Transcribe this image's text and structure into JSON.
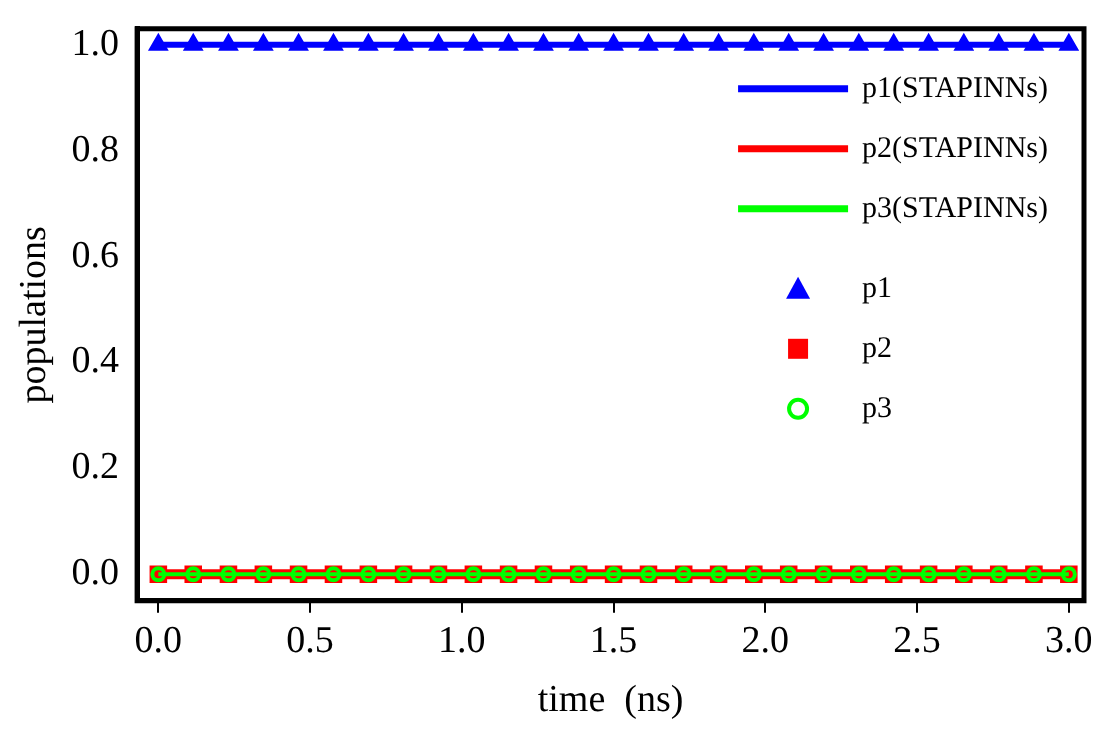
{
  "chart_data": {
    "type": "line",
    "xlabel": "time  (ns)",
    "ylabel": "populations",
    "xlim": [
      -0.07,
      3.05
    ],
    "ylim": [
      -0.05,
      1.03
    ],
    "xticks": [
      {
        "value": 0,
        "label": "0.0"
      },
      {
        "value": 0.5,
        "label": "0.5"
      },
      {
        "value": 1,
        "label": "1.0"
      },
      {
        "value": 1.5,
        "label": "1.5"
      },
      {
        "value": 2,
        "label": "2.0"
      },
      {
        "value": 2.5,
        "label": "2.5"
      },
      {
        "value": 3,
        "label": "3.0"
      }
    ],
    "yticks": [
      {
        "value": 0,
        "label": "0.0"
      },
      {
        "value": 0.2,
        "label": "0.2"
      },
      {
        "value": 0.4,
        "label": "0.4"
      },
      {
        "value": 0.6,
        "label": "0.6"
      },
      {
        "value": 0.8,
        "label": "0.8"
      },
      {
        "value": 1,
        "label": "1.0"
      }
    ],
    "grid": false,
    "legend": "top right",
    "series": [
      {
        "name": "p1(STAPINNs)",
        "type": "line",
        "color": "#0000ff",
        "marker": "none",
        "line_style": "solid",
        "x": [
          0,
          3
        ],
        "values": [
          1,
          1
        ]
      },
      {
        "name": "p2(STAPINNs)",
        "type": "line",
        "color": "#ff0000",
        "marker": "none",
        "line_style": "solid",
        "x": [
          0,
          3
        ],
        "values": [
          0,
          0
        ]
      },
      {
        "name": "p3(STAPINNs)",
        "type": "line",
        "color": "#00ff00",
        "marker": "none",
        "line_style": "solid",
        "x": [
          0,
          3
        ],
        "values": [
          0,
          0
        ]
      },
      {
        "name": "p1",
        "type": "scatter",
        "color": "#0000ff",
        "marker": "triangle",
        "x": [
          0,
          0.115,
          0.231,
          0.346,
          0.462,
          0.577,
          0.692,
          0.808,
          0.923,
          1.038,
          1.154,
          1.269,
          1.385,
          1.5,
          1.615,
          1.731,
          1.846,
          1.962,
          2.077,
          2.192,
          2.308,
          2.423,
          2.538,
          2.654,
          2.769,
          2.885,
          3
        ],
        "values": [
          1,
          1,
          1,
          1,
          1,
          1,
          1,
          1,
          1,
          1,
          1,
          1,
          1,
          1,
          1,
          1,
          1,
          1,
          1,
          1,
          1,
          1,
          1,
          1,
          1,
          1,
          1
        ]
      },
      {
        "name": "p2",
        "type": "scatter",
        "color": "#ff0000",
        "marker": "square",
        "x": [
          0,
          0.115,
          0.231,
          0.346,
          0.462,
          0.577,
          0.692,
          0.808,
          0.923,
          1.038,
          1.154,
          1.269,
          1.385,
          1.5,
          1.615,
          1.731,
          1.846,
          1.962,
          2.077,
          2.192,
          2.308,
          2.423,
          2.538,
          2.654,
          2.769,
          2.885,
          3
        ],
        "values": [
          0,
          0,
          0,
          0,
          0,
          0,
          0,
          0,
          0,
          0,
          0,
          0,
          0,
          0,
          0,
          0,
          0,
          0,
          0,
          0,
          0,
          0,
          0,
          0,
          0,
          0,
          0
        ]
      },
      {
        "name": "p3",
        "type": "scatter",
        "color": "#00ff00",
        "marker": "circle",
        "x": [
          0,
          0.115,
          0.231,
          0.346,
          0.462,
          0.577,
          0.692,
          0.808,
          0.923,
          1.038,
          1.154,
          1.269,
          1.385,
          1.5,
          1.615,
          1.731,
          1.846,
          1.962,
          2.077,
          2.192,
          2.308,
          2.423,
          2.538,
          2.654,
          2.769,
          2.885,
          3
        ],
        "values": [
          0,
          0,
          0,
          0,
          0,
          0,
          0,
          0,
          0,
          0,
          0,
          0,
          0,
          0,
          0,
          0,
          0,
          0,
          0,
          0,
          0,
          0,
          0,
          0,
          0,
          0,
          0
        ]
      }
    ]
  }
}
